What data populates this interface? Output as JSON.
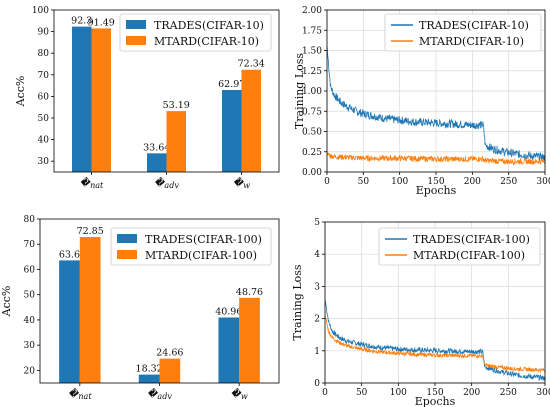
{
  "colors": {
    "blue": "#1f77b4",
    "orange": "#ff7f0e"
  },
  "chart_data": [
    {
      "id": "acc10",
      "type": "bar",
      "ylabel": "Acc%",
      "ylim": [
        25,
        100
      ],
      "yticks": [
        30,
        40,
        50,
        60,
        70,
        80,
        90,
        100
      ],
      "categories": [
        "𝒜nat",
        "𝒜adv",
        "𝒜w"
      ],
      "series": [
        {
          "name": "TRADES(CIFAR-10)",
          "values": [
            92.3,
            33.64,
            62.97
          ],
          "labels": [
            "92.3",
            "33.64",
            "62.97"
          ]
        },
        {
          "name": "MTARD(CIFAR-10)",
          "values": [
            91.49,
            53.19,
            72.34
          ],
          "labels": [
            "91.49",
            "53.19",
            "72.34"
          ]
        }
      ],
      "legend": "top-right"
    },
    {
      "id": "loss10",
      "type": "line",
      "xlabel": "Epochs",
      "ylabel": "Training Loss",
      "xlim": [
        0,
        300
      ],
      "ylim": [
        0,
        2.0
      ],
      "xticks": [
        0,
        50,
        100,
        150,
        200,
        250,
        300
      ],
      "xtick_labels": [
        "0",
        "50",
        "100",
        "150",
        "200",
        "250",
        "300"
      ],
      "yticks": [
        0,
        0.25,
        0.5,
        0.75,
        1.0,
        1.25,
        1.5,
        1.75,
        2.0
      ],
      "ytick_labels": [
        "0.00",
        "0.25",
        "0.50",
        "0.75",
        "1.00",
        "1.25",
        "1.50",
        "1.75",
        "2.00"
      ],
      "grid": true,
      "legend": "top-right",
      "series": [
        {
          "name": "TRADES(CIFAR-10)",
          "x": [
            0,
            5,
            10,
            20,
            30,
            40,
            50,
            60,
            70,
            80,
            90,
            100,
            120,
            140,
            160,
            180,
            200,
            215,
            218,
            230,
            250,
            270,
            290,
            300
          ],
          "y": [
            1.55,
            1.05,
            0.95,
            0.85,
            0.8,
            0.75,
            0.72,
            0.7,
            0.68,
            0.66,
            0.65,
            0.64,
            0.62,
            0.61,
            0.6,
            0.59,
            0.58,
            0.58,
            0.33,
            0.28,
            0.24,
            0.21,
            0.19,
            0.18
          ],
          "noise": 0.05
        },
        {
          "name": "MTARD(CIFAR-10)",
          "x": [
            0,
            5,
            10,
            30,
            50,
            100,
            150,
            200,
            215,
            218,
            250,
            300
          ],
          "y": [
            0.22,
            0.2,
            0.19,
            0.18,
            0.17,
            0.17,
            0.16,
            0.16,
            0.16,
            0.14,
            0.13,
            0.13
          ],
          "noise": 0.035
        }
      ]
    },
    {
      "id": "acc100",
      "type": "bar",
      "ylabel": "Acc%",
      "ylim": [
        15,
        80
      ],
      "yticks": [
        20,
        30,
        40,
        50,
        60,
        70,
        80
      ],
      "categories": [
        "𝒜nat",
        "𝒜adv",
        "𝒜w"
      ],
      "series": [
        {
          "name": "TRADES(CIFAR-100)",
          "values": [
            63.6,
            18.32,
            40.96
          ],
          "labels": [
            "63.6",
            "18.32",
            "40.96"
          ]
        },
        {
          "name": "MTARD(CIFAR-100)",
          "values": [
            72.85,
            24.66,
            48.76
          ],
          "labels": [
            "72.85",
            "24.66",
            "48.76"
          ]
        }
      ],
      "legend": "top-right"
    },
    {
      "id": "loss100",
      "type": "line",
      "xlabel": "Epochs",
      "ylabel": "Training Loss",
      "xlim": [
        0,
        300
      ],
      "ylim": [
        0,
        5
      ],
      "xticks": [
        0,
        50,
        100,
        150,
        200,
        250,
        300
      ],
      "xtick_labels": [
        "0",
        "50",
        "100",
        "150",
        "200",
        "250",
        "300"
      ],
      "yticks": [
        0,
        1,
        2,
        3,
        4,
        5
      ],
      "ytick_labels": [
        "0",
        "1",
        "2",
        "3",
        "4",
        "5"
      ],
      "grid": true,
      "legend": "top-right",
      "series": [
        {
          "name": "TRADES(CIFAR-100)",
          "x": [
            0,
            5,
            10,
            20,
            30,
            50,
            70,
            100,
            130,
            160,
            190,
            215,
            218,
            240,
            260,
            280,
            300
          ],
          "y": [
            2.6,
            1.9,
            1.6,
            1.4,
            1.3,
            1.2,
            1.12,
            1.05,
            1.02,
            1.0,
            0.98,
            0.97,
            0.5,
            0.35,
            0.25,
            0.2,
            0.15
          ],
          "noise": 0.08
        },
        {
          "name": "MTARD(CIFAR-100)",
          "x": [
            0,
            5,
            10,
            20,
            30,
            50,
            70,
            100,
            130,
            160,
            190,
            215,
            218,
            240,
            260,
            280,
            300
          ],
          "y": [
            2.1,
            1.6,
            1.4,
            1.25,
            1.15,
            1.05,
            0.98,
            0.92,
            0.88,
            0.86,
            0.85,
            0.84,
            0.55,
            0.48,
            0.44,
            0.42,
            0.4
          ],
          "noise": 0.06
        }
      ]
    }
  ]
}
